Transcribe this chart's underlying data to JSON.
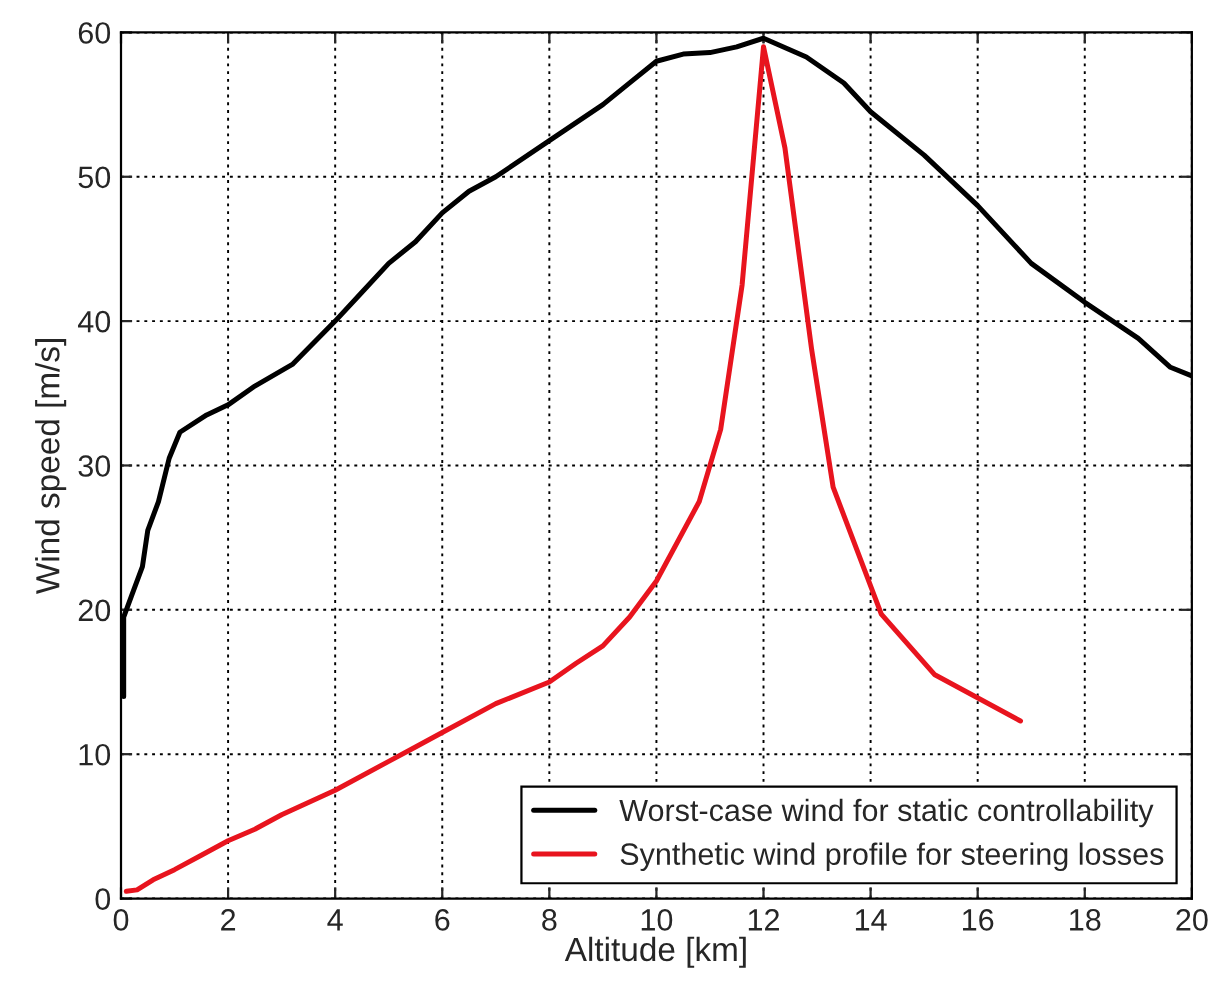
{
  "chart_data": {
    "type": "line",
    "xlabel": "Altitude [km]",
    "ylabel": "Wind speed [m/s]",
    "xlim": [
      0,
      20
    ],
    "ylim": [
      0,
      60
    ],
    "xticks": [
      0,
      2,
      4,
      6,
      8,
      10,
      12,
      14,
      16,
      18,
      20
    ],
    "yticks": [
      0,
      10,
      20,
      30,
      40,
      50,
      60
    ],
    "grid": true,
    "legend": "bottom right",
    "line_style": "solid",
    "series": [
      {
        "name": "Worst-case wind for static controllability",
        "color": "#000000",
        "x": [
          0.05,
          0.05,
          0.2,
          0.4,
          0.5,
          0.7,
          0.9,
          1.1,
          1.6,
          2,
          2.5,
          3.2,
          4,
          4.5,
          5,
          5.5,
          6,
          6.5,
          7,
          8,
          9,
          9.5,
          10,
          10.5,
          11,
          11.5,
          12,
          12.8,
          13.5,
          14,
          15,
          16,
          17,
          18,
          19,
          19.6,
          20
        ],
        "values": [
          14,
          19.5,
          21,
          23,
          25.5,
          27.5,
          30.5,
          32.3,
          33.5,
          34.2,
          35.5,
          37,
          40,
          42,
          44,
          45.5,
          47.5,
          49,
          50,
          52.5,
          55,
          56.5,
          58,
          58.5,
          58.6,
          59,
          59.6,
          58.3,
          56.5,
          54.5,
          51.5,
          48,
          44,
          41.3,
          38.8,
          36.8,
          36.2
        ]
      },
      {
        "name": "Synthetic wind profile for steering losses",
        "color": "#e8141e",
        "x": [
          0.1,
          0.3,
          0.6,
          1,
          1.5,
          2,
          2.5,
          3,
          4,
          5,
          5.5,
          6,
          7,
          8,
          8.5,
          9,
          9.5,
          10,
          10.8,
          11.2,
          11.6,
          12,
          12.4,
          12.9,
          13.3,
          14.2,
          15.2,
          16.8
        ],
        "values": [
          0.5,
          0.6,
          1.3,
          2,
          3,
          4,
          4.8,
          5.8,
          7.5,
          9.5,
          10.5,
          11.5,
          13.5,
          15,
          16.3,
          17.5,
          19.5,
          22,
          27.5,
          32.5,
          42.5,
          59,
          52,
          38,
          28.5,
          19.7,
          15.5,
          12.3
        ]
      }
    ]
  }
}
